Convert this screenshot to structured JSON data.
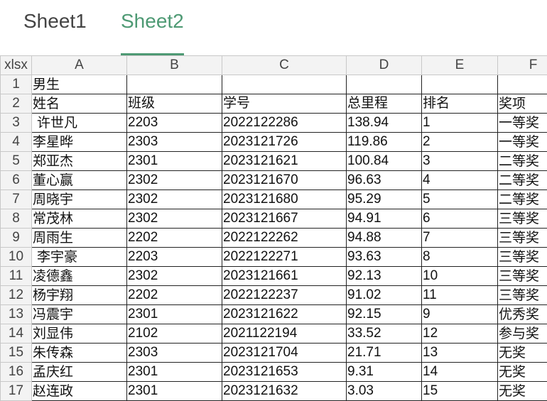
{
  "tabs": [
    {
      "label": "Sheet1",
      "active": false
    },
    {
      "label": "Sheet2",
      "active": true
    }
  ],
  "corner_label": "xlsx",
  "columns": [
    "A",
    "B",
    "C",
    "D",
    "E",
    "F"
  ],
  "selected_column": "E",
  "accent_color": "#4e9a74",
  "rows": [
    [
      "男生",
      "",
      "",
      "",
      "",
      ""
    ],
    [
      "姓名",
      "班级",
      "学号",
      "总里程",
      "排名",
      "奖项"
    ],
    [
      " 许世凡",
      "2203",
      "2022122286",
      "138.94",
      "1",
      "一等奖"
    ],
    [
      "李星晔",
      "2303",
      "2023121726",
      "119.86",
      "2",
      "一等奖"
    ],
    [
      "郑亚杰",
      "2301",
      "2023121621",
      "100.84",
      "3",
      "二等奖"
    ],
    [
      "董心赢",
      "2302",
      "2023121670",
      "96.63",
      "4",
      "二等奖"
    ],
    [
      "周晓宇",
      "2302",
      "2023121680",
      "95.29",
      "5",
      "二等奖"
    ],
    [
      "常茂林",
      "2302",
      "2023121667",
      "94.91",
      "6",
      "三等奖"
    ],
    [
      "周雨生",
      "2202",
      "2022122262",
      "94.88",
      "7",
      "三等奖"
    ],
    [
      " 李宇豪",
      "2203",
      "2022122271",
      "93.63",
      "8",
      "三等奖"
    ],
    [
      "凌德鑫",
      "2302",
      "2023121661",
      "92.13",
      "10",
      "三等奖"
    ],
    [
      "杨宇翔",
      "2202",
      "2022122237",
      "91.02",
      "11",
      "三等奖"
    ],
    [
      "冯震宇",
      "2301",
      "2023121622",
      "92.15",
      "9",
      "优秀奖"
    ],
    [
      "刘显伟",
      "2102",
      "2021122194",
      "33.52",
      "12",
      "参与奖"
    ],
    [
      "朱传森",
      "2303",
      "2023121704",
      "21.71",
      "13",
      "无奖"
    ],
    [
      "孟庆红",
      "2301",
      "2023121653",
      "9.31",
      "14",
      "无奖"
    ],
    [
      "赵连政",
      "2301",
      "2023121632",
      "3.03",
      "15",
      "无奖"
    ]
  ]
}
